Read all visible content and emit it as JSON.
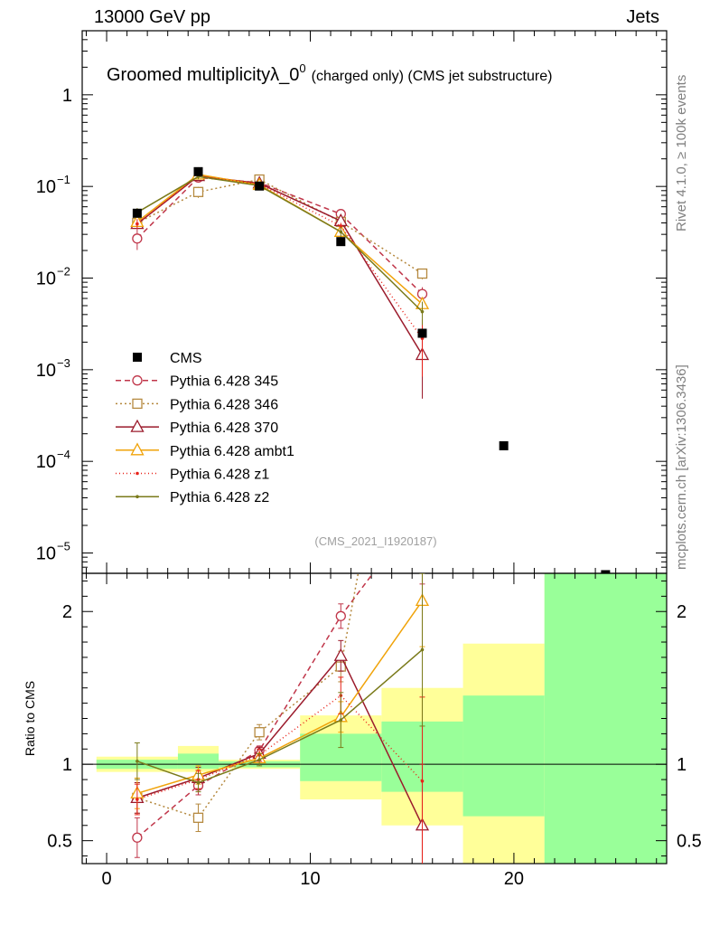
{
  "header": {
    "left": "13000 GeV pp",
    "right": "Jets"
  },
  "side_labels": {
    "rivet": "Rivet 4.1.0, ≥ 100k events",
    "mcplots": "mcplots.cern.ch [arXiv:1306.3436]"
  },
  "chart_data": {
    "type": "line",
    "title": "Groomed multiplicityλ_0",
    "title_sup": "0",
    "title_small": "(charged only)",
    "title_tail": "(CMS jet substructure)",
    "watermark": "(CMS_2021_I1920187)",
    "main_y_scale": "log",
    "main_ylim": [
      6e-06,
      5
    ],
    "main_ytick_labels": [
      {
        "value": 1,
        "label": "1"
      },
      {
        "value": 0.1,
        "label": "10",
        "exp": "−1"
      },
      {
        "value": 0.01,
        "label": "10",
        "exp": "−2"
      },
      {
        "value": 0.001,
        "label": "10",
        "exp": "−3"
      },
      {
        "value": 0.0001,
        "label": "10",
        "exp": "−4"
      },
      {
        "value": 1e-05,
        "label": "10",
        "exp": "−5"
      }
    ],
    "xlim": [
      -1.2,
      27.5
    ],
    "xtick_labels": [
      {
        "value": 0,
        "label": "0"
      },
      {
        "value": 10,
        "label": "10"
      },
      {
        "value": 20,
        "label": "20"
      }
    ],
    "ratio_ylabel": "Ratio to CMS",
    "ratio_ylim": [
      0.35,
      2.25
    ],
    "ratio_ytick_labels": [
      {
        "value": 0.5,
        "label": "0.5"
      },
      {
        "value": 1,
        "label": "1"
      },
      {
        "value": 2,
        "label": "2"
      }
    ],
    "reference": {
      "name": "CMS",
      "points": [
        {
          "x": 1.5,
          "y": 0.051
        },
        {
          "x": 4.5,
          "y": 0.145
        },
        {
          "x": 7.5,
          "y": 0.101
        },
        {
          "x": 11.5,
          "y": 0.025
        },
        {
          "x": 15.5,
          "y": 0.0025
        },
        {
          "x": 19.5,
          "y": 0.000148
        },
        {
          "x": 24.5,
          "y": 5.8e-06
        }
      ],
      "bands": [
        {
          "x0": -0.5,
          "x1": 3.5,
          "yellow": [
            0.95,
            1.05
          ],
          "green": [
            0.97,
            1.03
          ]
        },
        {
          "x0": 3.5,
          "x1": 5.5,
          "yellow": [
            0.95,
            1.12
          ],
          "green": [
            0.97,
            1.07
          ]
        },
        {
          "x0": 5.5,
          "x1": 9.5,
          "yellow": [
            0.97,
            1.03
          ],
          "green": [
            0.98,
            1.02
          ]
        },
        {
          "x0": 9.5,
          "x1": 13.5,
          "yellow": [
            0.77,
            1.32
          ],
          "green": [
            0.89,
            1.2
          ]
        },
        {
          "x0": 13.5,
          "x1": 17.5,
          "yellow": [
            0.6,
            1.5
          ],
          "green": [
            0.82,
            1.28
          ]
        },
        {
          "x0": 17.5,
          "x1": 21.5,
          "yellow": [
            0.25,
            1.79
          ],
          "green": [
            0.66,
            1.45
          ]
        },
        {
          "x0": 21.5,
          "x1": 27.5,
          "yellow": [
            0.25,
            3.0
          ],
          "green": [
            0.25,
            3.0
          ]
        }
      ]
    },
    "series": [
      {
        "name": "Pythia 6.428 345",
        "color": "#c0364a",
        "dash": "6,4",
        "marker": "circle",
        "x": [
          1.5,
          4.5,
          7.5,
          11.5,
          15.5
        ],
        "y": [
          0.027,
          0.125,
          0.11,
          0.05,
          0.0067
        ],
        "ratio": [
          0.52,
          0.86,
          1.09,
          1.97,
          2.68
        ],
        "ratio_err": [
          0.13,
          0.06,
          0.03,
          0.08,
          0.5
        ]
      },
      {
        "name": "Pythia 6.428 346",
        "color": "#b5893f",
        "dash": "2,3",
        "marker": "square",
        "x": [
          1.5,
          4.5,
          7.5,
          11.5,
          15.5
        ],
        "y": [
          0.04,
          0.087,
          0.119,
          0.041,
          0.0112
        ],
        "ratio": [
          0.78,
          0.65,
          1.21,
          1.64,
          4.5
        ],
        "ratio_err": [
          0.1,
          0.09,
          0.05,
          0.1,
          0.6
        ]
      },
      {
        "name": "Pythia 6.428 370",
        "color": "#9b1b2c",
        "dash": "",
        "marker": "triangle",
        "x": [
          1.5,
          4.5,
          7.5,
          11.5,
          15.5
        ],
        "y": [
          0.039,
          0.13,
          0.108,
          0.042,
          0.00145
        ],
        "ratio": [
          0.78,
          0.91,
          1.07,
          1.71,
          0.6
        ],
        "ratio_err": [
          0.1,
          0.07,
          0.04,
          0.1,
          0.4
        ]
      },
      {
        "name": "Pythia 6.428 ambt1",
        "color": "#f0a30a",
        "dash": "",
        "marker": "triangle",
        "x": [
          1.5,
          4.5,
          7.5,
          11.5,
          15.5
        ],
        "y": [
          0.041,
          0.135,
          0.104,
          0.032,
          0.0052
        ],
        "ratio": [
          0.81,
          0.93,
          1.04,
          1.31,
          2.07
        ],
        "ratio_err": [
          0.1,
          0.06,
          0.03,
          0.1,
          0.3
        ]
      },
      {
        "name": "Pythia 6.428 z1",
        "color": "#e8231a",
        "dash": "1,3",
        "marker": "dot",
        "x": [
          1.5,
          4.5,
          7.5,
          11.5,
          15.5
        ],
        "y": [
          0.039,
          0.13,
          0.106,
          0.037,
          0.0022
        ],
        "ratio": [
          0.77,
          0.9,
          1.06,
          1.45,
          0.89
        ],
        "ratio_err": [
          0.1,
          0.06,
          0.04,
          0.12,
          0.55
        ]
      },
      {
        "name": "Pythia 6.428 z2",
        "color": "#7a7a1a",
        "dash": "",
        "marker": "dot",
        "x": [
          1.5,
          4.5,
          7.5,
          11.5,
          15.5
        ],
        "y": [
          0.052,
          0.128,
          0.102,
          0.032,
          0.0043
        ],
        "ratio": [
          1.02,
          0.88,
          1.03,
          1.29,
          1.75
        ],
        "ratio_err": [
          0.12,
          0.06,
          0.04,
          0.18,
          0.5
        ]
      }
    ]
  }
}
